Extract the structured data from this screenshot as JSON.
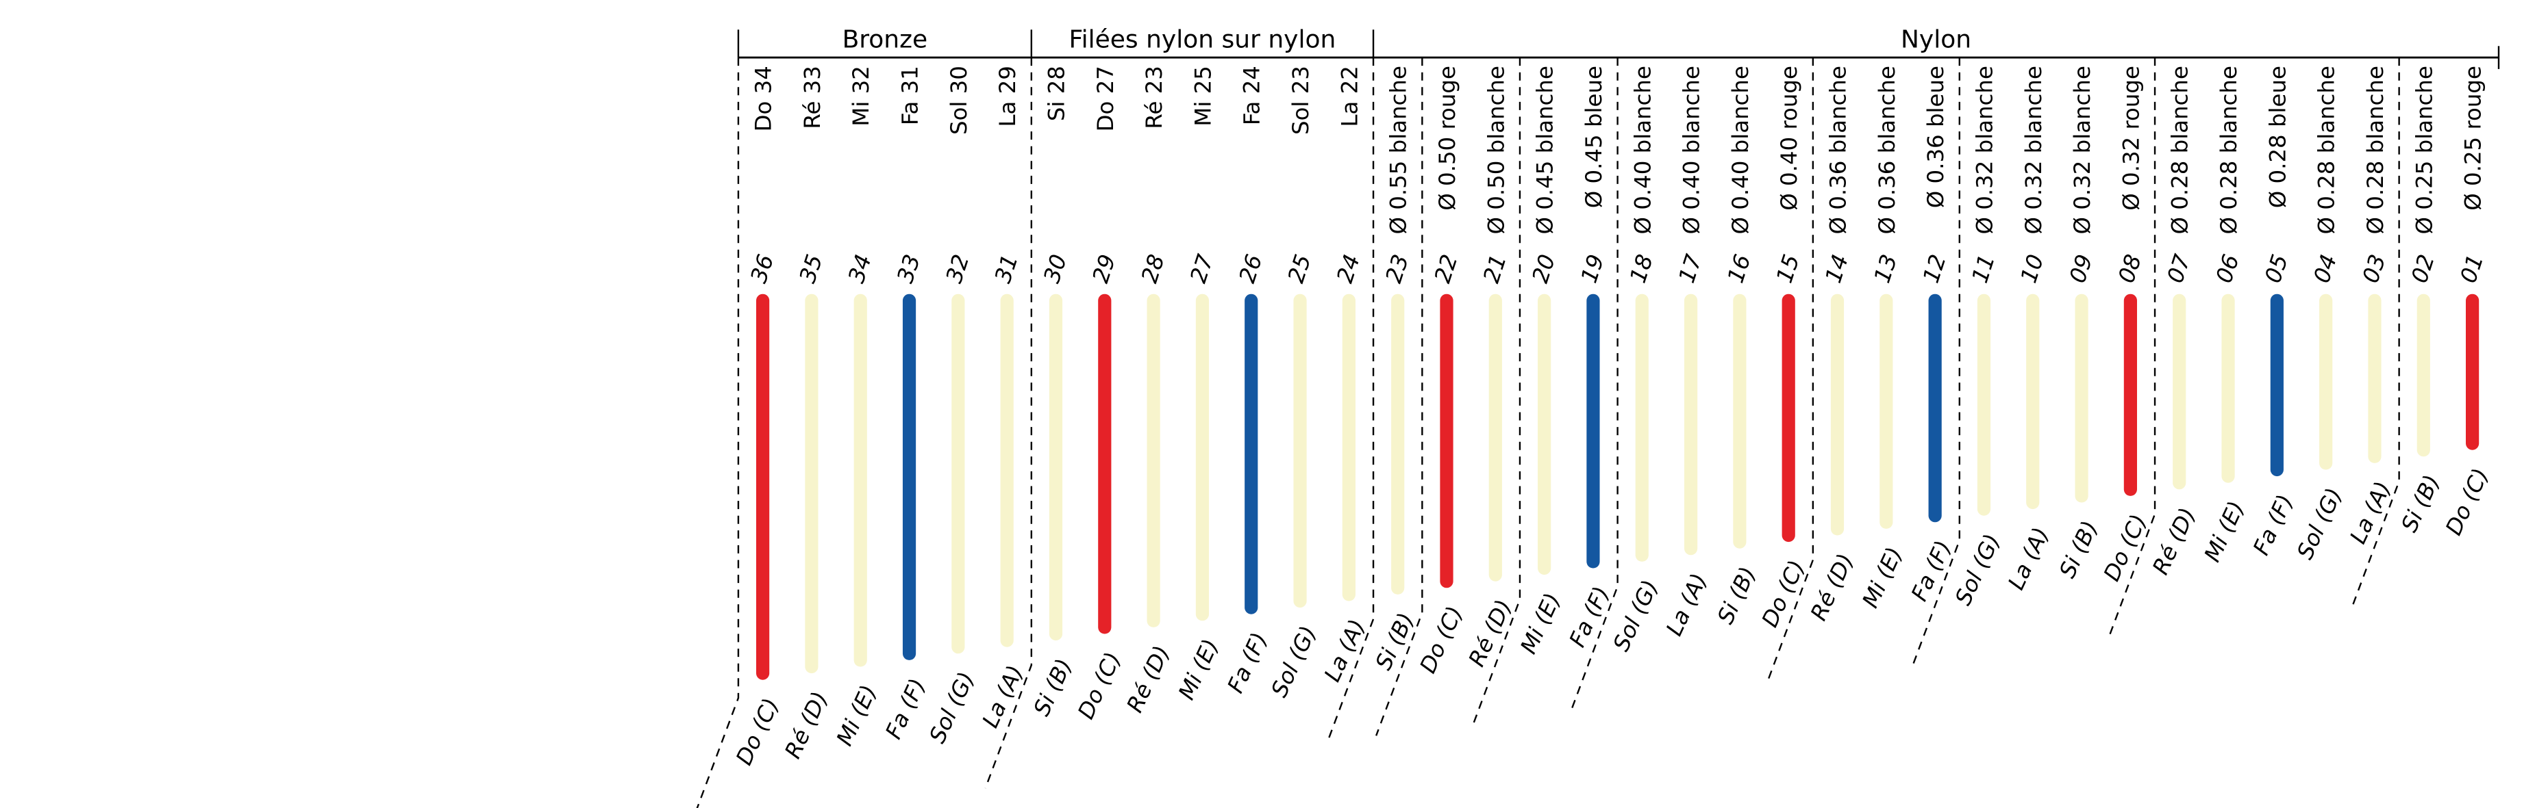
{
  "colors": {
    "rouge": "#e52228",
    "bleue": "#1457a0",
    "blanche": "#f7f4cc"
  },
  "groups": [
    {
      "title": "Bronze",
      "strings": [
        "36",
        "35",
        "34",
        "33",
        "32",
        "31"
      ]
    },
    {
      "title": "Filées nylon sur nylon",
      "strings": [
        "30",
        "29",
        "28",
        "27",
        "26",
        "25",
        "24"
      ]
    },
    {
      "title": "Nylon",
      "strings": [
        "23",
        "22",
        "21",
        "20",
        "19",
        "18",
        "17",
        "16",
        "15",
        "14",
        "13",
        "12",
        "11",
        "10",
        "09",
        "08",
        "07",
        "06",
        "05",
        "04",
        "03",
        "02",
        "01"
      ]
    }
  ],
  "strings": [
    {
      "number": "36",
      "note": "Do (C)",
      "label": "Do 34",
      "color": "rouge"
    },
    {
      "number": "35",
      "note": "Ré (D)",
      "label": "Ré 33",
      "color": "blanche"
    },
    {
      "number": "34",
      "note": "Mi (E)",
      "label": "Mi 32",
      "color": "blanche"
    },
    {
      "number": "33",
      "note": "Fa (F)",
      "label": "Fa 31",
      "color": "bleue"
    },
    {
      "number": "32",
      "note": "Sol (G)",
      "label": "Sol 30",
      "color": "blanche"
    },
    {
      "number": "31",
      "note": "La (A)",
      "label": "La 29",
      "color": "blanche"
    },
    {
      "number": "30",
      "note": "Si (B)",
      "label": "Si 28",
      "color": "blanche"
    },
    {
      "number": "29",
      "note": "Do (C)",
      "label": "Do 27",
      "color": "rouge"
    },
    {
      "number": "28",
      "note": "Ré (D)",
      "label": "Ré 23",
      "color": "blanche"
    },
    {
      "number": "27",
      "note": "Mi (E)",
      "label": "Mi 25",
      "color": "blanche"
    },
    {
      "number": "26",
      "note": "Fa (F)",
      "label": "Fa 24",
      "color": "bleue"
    },
    {
      "number": "25",
      "note": "Sol (G)",
      "label": "Sol 23",
      "color": "blanche"
    },
    {
      "number": "24",
      "note": "La (A)",
      "label": "La 22",
      "color": "blanche"
    },
    {
      "number": "23",
      "note": "Si (B)",
      "label": "Ø 0.55 blanche",
      "color": "blanche"
    },
    {
      "number": "22",
      "note": "Do (C)",
      "label": "Ø 0.50 rouge",
      "color": "rouge"
    },
    {
      "number": "21",
      "note": "Ré (D)",
      "label": "Ø 0.50 blanche",
      "color": "blanche"
    },
    {
      "number": "20",
      "note": "Mi (E)",
      "label": "Ø 0.45 blanche",
      "color": "blanche"
    },
    {
      "number": "19",
      "note": "Fa (F)",
      "label": "Ø 0.45 bleue",
      "color": "bleue"
    },
    {
      "number": "18",
      "note": "Sol (G)",
      "label": "Ø 0.40 blanche",
      "color": "blanche"
    },
    {
      "number": "17",
      "note": "La (A)",
      "label": "Ø 0.40 blanche",
      "color": "blanche"
    },
    {
      "number": "16",
      "note": "Si (B)",
      "label": "Ø 0.40 blanche",
      "color": "blanche"
    },
    {
      "number": "15",
      "note": "Do (C)",
      "label": "Ø 0.40 rouge",
      "color": "rouge"
    },
    {
      "number": "14",
      "note": "Ré (D)",
      "label": "Ø 0.36 blanche",
      "color": "blanche"
    },
    {
      "number": "13",
      "note": "Mi (E)",
      "label": "Ø 0.36 blanche",
      "color": "blanche"
    },
    {
      "number": "12",
      "note": "Fa (F)",
      "label": "Ø 0.36 bleue",
      "color": "bleue"
    },
    {
      "number": "11",
      "note": "Sol (G)",
      "label": "Ø 0.32 blanche",
      "color": "blanche"
    },
    {
      "number": "10",
      "note": "La (A)",
      "label": "Ø 0.32 blanche",
      "color": "blanche"
    },
    {
      "number": "09",
      "note": "Si (B)",
      "label": "Ø 0.32 blanche",
      "color": "blanche"
    },
    {
      "number": "08",
      "note": "Do (C)",
      "label": "Ø 0.32 rouge",
      "color": "rouge"
    },
    {
      "number": "07",
      "note": "Ré (D)",
      "label": "Ø 0.28 blanche",
      "color": "blanche"
    },
    {
      "number": "06",
      "note": "Mi (E)",
      "label": "Ø 0.28 blanche",
      "color": "blanche"
    },
    {
      "number": "05",
      "note": "Fa (F)",
      "label": "Ø 0.28 bleue",
      "color": "bleue"
    },
    {
      "number": "04",
      "note": "Sol (G)",
      "label": "Ø 0.28 blanche",
      "color": "blanche"
    },
    {
      "number": "03",
      "note": "La (A)",
      "label": "Ø 0.28 blanche",
      "color": "blanche"
    },
    {
      "number": "02",
      "note": "Si (B)",
      "label": "Ø 0.25 blanche",
      "color": "blanche"
    },
    {
      "number": "01",
      "note": "Do (C)",
      "label": "Ø 0.25 rouge",
      "color": "rouge"
    }
  ]
}
